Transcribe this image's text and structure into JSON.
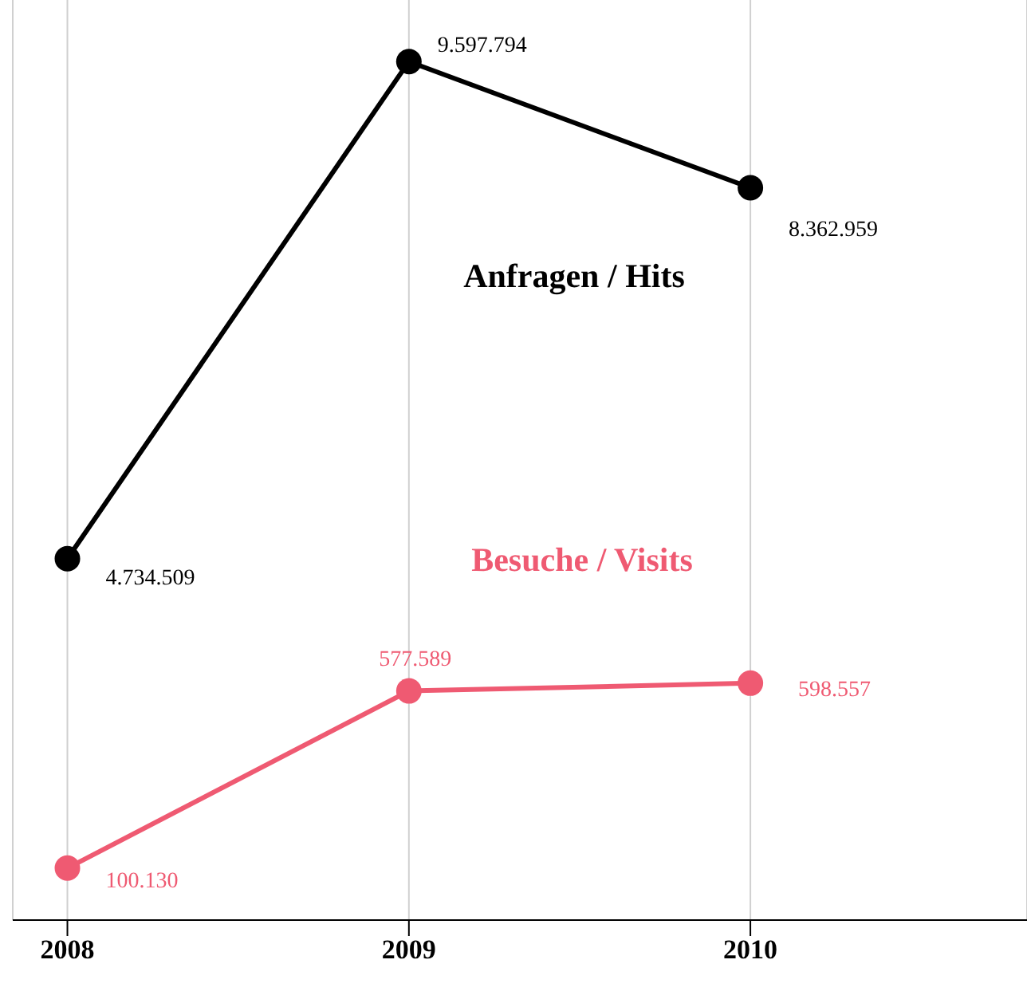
{
  "chart_data": {
    "type": "line",
    "categories": [
      "2008",
      "2009",
      "2010"
    ],
    "series": [
      {
        "name": "Anfragen / Hits",
        "color": "#000000",
        "values": [
          4734509,
          9597794,
          8362959
        ],
        "value_labels": [
          "4.734.509",
          "9.597.794",
          "8.362.959"
        ]
      },
      {
        "name": "Besuche / Visits",
        "color": "#ef5a72",
        "axis": "y2",
        "values": [
          100130,
          577589,
          598557
        ],
        "value_labels": [
          "100.130",
          "577.589",
          "598.557"
        ]
      }
    ],
    "ylim": [
      1200000,
      10200000
    ],
    "y2lim": [
      -40000,
      2440000
    ],
    "grid": "x",
    "legend": false,
    "marker": "circle",
    "line_style": "solid",
    "tick_labels": "x"
  }
}
